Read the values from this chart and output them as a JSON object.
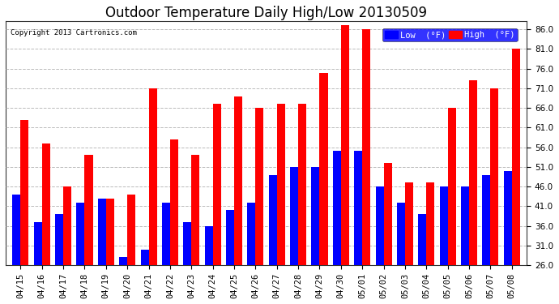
{
  "title": "Outdoor Temperature Daily High/Low 20130509",
  "copyright": "Copyright 2013 Cartronics.com",
  "legend_low": "Low  (°F)",
  "legend_high": "High  (°F)",
  "dates": [
    "04/15",
    "04/16",
    "04/17",
    "04/18",
    "04/19",
    "04/20",
    "04/21",
    "04/22",
    "04/23",
    "04/24",
    "04/25",
    "04/26",
    "04/27",
    "04/28",
    "04/29",
    "04/30",
    "05/01",
    "05/02",
    "05/03",
    "05/04",
    "05/05",
    "05/06",
    "05/07",
    "05/08"
  ],
  "high": [
    63,
    57,
    46,
    54,
    43,
    44,
    71,
    58,
    54,
    67,
    69,
    66,
    67,
    67,
    75,
    87,
    86,
    52,
    47,
    47,
    66,
    73,
    71,
    81
  ],
  "low": [
    44,
    37,
    39,
    42,
    43,
    28,
    30,
    42,
    37,
    36,
    40,
    42,
    49,
    51,
    51,
    55,
    55,
    46,
    42,
    39,
    46,
    46,
    49,
    50
  ],
  "ymin": 26,
  "ymax": 88,
  "yticks": [
    26.0,
    31.0,
    36.0,
    41.0,
    46.0,
    51.0,
    56.0,
    61.0,
    66.0,
    71.0,
    76.0,
    81.0,
    86.0
  ],
  "bg_color": "#ffffff",
  "low_color": "#0000ff",
  "high_color": "#ff0000",
  "bar_width": 0.38,
  "title_fontsize": 12,
  "tick_fontsize": 7.5,
  "grid_color": "#bbbbbb"
}
